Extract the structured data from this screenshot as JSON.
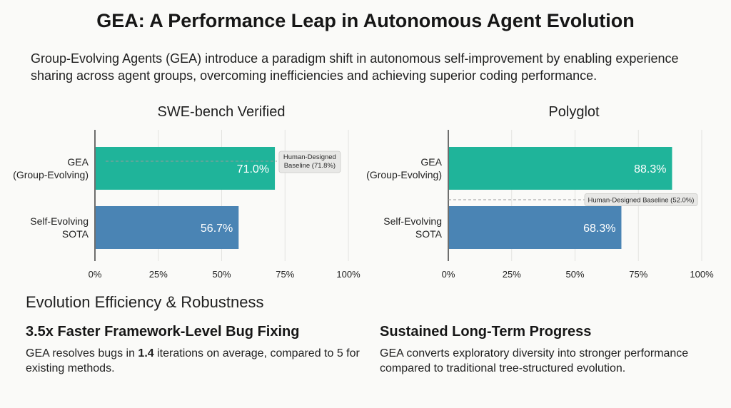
{
  "header": {
    "title": "GEA: A Performance Leap in Autonomous Agent Evolution",
    "subtitle": "Group-Evolving Agents (GEA) introduce a paradigm shift in autonomous self-improvement by enabling experience sharing across agent groups, overcoming inefficiencies and achieving superior coding performance."
  },
  "chart_data": [
    {
      "type": "bar",
      "orientation": "horizontal",
      "title": "SWE-bench Verified",
      "categories": [
        [
          "GEA",
          "(Group-Evolving)"
        ],
        [
          "Self-Evolving",
          "SOTA"
        ]
      ],
      "values": [
        71.0,
        56.7
      ],
      "value_labels": [
        "71.0%",
        "56.7%"
      ],
      "colors": [
        "#1fb49a",
        "#4a84b4"
      ],
      "xlim": [
        0,
        100
      ],
      "xticks": [
        0,
        25,
        50,
        75,
        100
      ],
      "xtick_labels": [
        "0%",
        "25%",
        "50%",
        "75%",
        "100%"
      ],
      "grid": true,
      "baseline": {
        "value": 71.8,
        "label": [
          "Human-Designed",
          "Baseline (71.8%)"
        ]
      }
    },
    {
      "type": "bar",
      "orientation": "horizontal",
      "title": "Polyglot",
      "categories": [
        [
          "GEA",
          "(Group-Evolving)"
        ],
        [
          "Self-Evolving",
          "SOTA"
        ]
      ],
      "values": [
        88.3,
        68.3
      ],
      "value_labels": [
        "88.3%",
        "68.3%"
      ],
      "colors": [
        "#1fb49a",
        "#4a84b4"
      ],
      "xlim": [
        0,
        100
      ],
      "xticks": [
        0,
        25,
        50,
        75,
        100
      ],
      "xtick_labels": [
        "0%",
        "25%",
        "50%",
        "75%",
        "100%"
      ],
      "grid": true,
      "baseline": {
        "value": 52.0,
        "label": [
          "Human-Designed Baseline (52.0%)"
        ]
      }
    }
  ],
  "efficiency": {
    "heading": "Evolution Efficiency & Robustness",
    "cards": [
      {
        "title": "3.5x Faster Framework-Level Bug Fixing",
        "body_before": "GEA resolves bugs in ",
        "body_bold": "1.4",
        "body_after": " iterations on average, compared to 5 for existing methods."
      },
      {
        "title": "Sustained Long-Term Progress",
        "body_before": "GEA converts exploratory diversity into stronger performance compared to traditional tree-structured evolution.",
        "body_bold": "",
        "body_after": ""
      }
    ]
  }
}
